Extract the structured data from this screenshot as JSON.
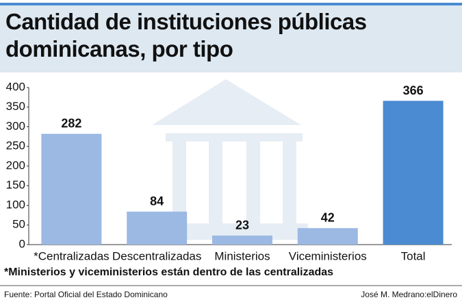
{
  "chart_data": {
    "type": "bar",
    "title": "Cantidad de instituciones públicas dominicanas, por tipo",
    "categories": [
      "*Centralizadas",
      "Descentralizadas",
      "Ministerios",
      "Viceministerios",
      "Total"
    ],
    "values": [
      282,
      84,
      23,
      42,
      366
    ],
    "colors": [
      "#9bb9e3",
      "#9bb9e3",
      "#9bb9e3",
      "#9bb9e3",
      "#4a8bd2"
    ],
    "ylim": [
      0,
      400
    ],
    "yticks": [
      0,
      50,
      100,
      150,
      200,
      250,
      300,
      350,
      400
    ],
    "grid": false,
    "note": "*Ministerios y viceministerios están dentro de las centralizadas",
    "source": "Fuente: Portal Oficial del Estado Dominicano",
    "credit": "José M. Medrano:elDinero"
  }
}
